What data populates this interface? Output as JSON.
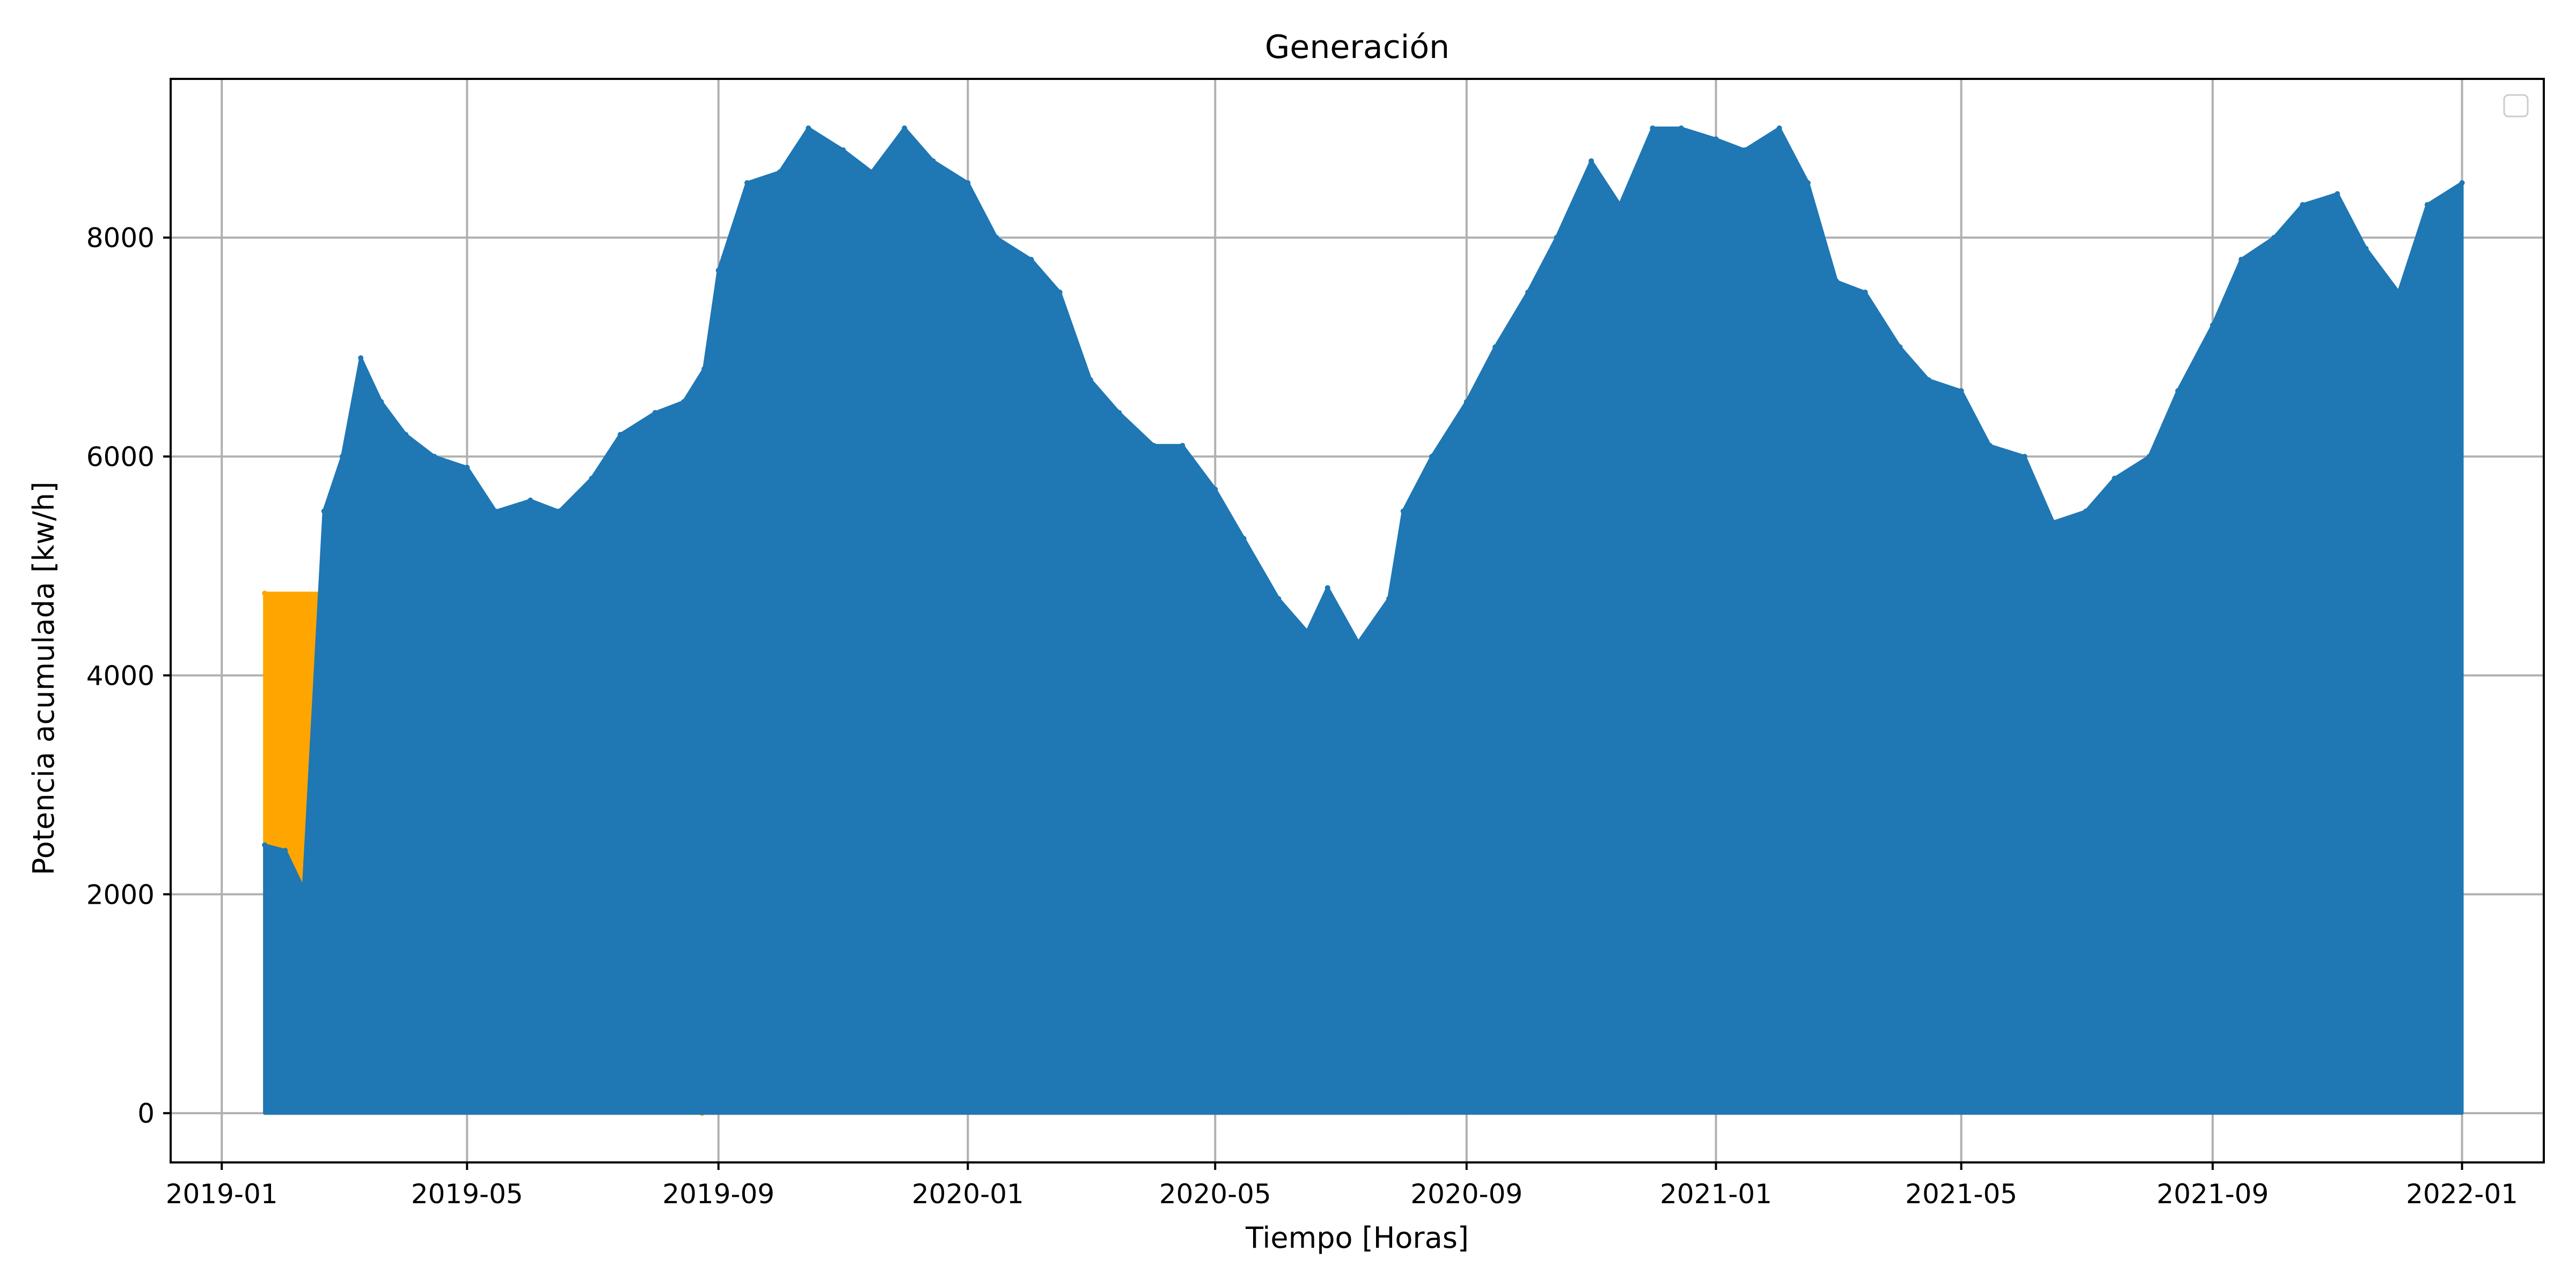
{
  "chart_data": {
    "type": "area",
    "title": "Generación",
    "xlabel": "Tiempo [Horas]",
    "ylabel": "Potencia acumulada [kw/h]",
    "x_ticks": [
      "2019-01",
      "2019-05",
      "2019-09",
      "2020-01",
      "2020-05",
      "2020-09",
      "2021-01",
      "2021-05",
      "2021-09",
      "2022-01"
    ],
    "y_ticks": [
      0,
      2000,
      4000,
      6000,
      8000
    ],
    "xlim": [
      "2018-12-07",
      "2022-02-10"
    ],
    "ylim": [
      -450,
      9450
    ],
    "grid": true,
    "legend": {
      "placement": "top-right",
      "entries": []
    },
    "series": [
      {
        "color": "#ffa500",
        "x": [
          "2019-01-22",
          "2019-02-22",
          "2019-03-10",
          "2019-05-01",
          "2019-05-15",
          "2019-06-10",
          "2019-07-01",
          "2019-08-01",
          "2019-08-20",
          "2019-08-24",
          "2020-06-05",
          "2020-07-10",
          "2020-08-01"
        ],
        "values": [
          4750,
          4750,
          4700,
          4350,
          4500,
          3600,
          4000,
          4550,
          3600,
          0,
          3700,
          4300,
          3550
        ]
      },
      {
        "color": "#1f77b4",
        "x": [
          "2019-01-22",
          "2019-02-01",
          "2019-02-10",
          "2019-02-20",
          "2019-03-01",
          "2019-03-10",
          "2019-03-20",
          "2019-04-01",
          "2019-04-15",
          "2019-05-01",
          "2019-05-15",
          "2019-06-01",
          "2019-06-15",
          "2019-07-01",
          "2019-07-15",
          "2019-08-01",
          "2019-08-15",
          "2019-08-25",
          "2019-09-01",
          "2019-09-15",
          "2019-10-01",
          "2019-10-15",
          "2019-11-01",
          "2019-11-15",
          "2019-12-01",
          "2019-12-15",
          "2020-01-01",
          "2020-01-15",
          "2020-02-01",
          "2020-02-15",
          "2020-03-01",
          "2020-03-15",
          "2020-04-01",
          "2020-04-15",
          "2020-05-01",
          "2020-05-15",
          "2020-06-01",
          "2020-06-15",
          "2020-06-25",
          "2020-07-10",
          "2020-07-25",
          "2020-08-01",
          "2020-08-15",
          "2020-09-01",
          "2020-09-15",
          "2020-10-01",
          "2020-10-15",
          "2020-11-01",
          "2020-11-15",
          "2020-12-01",
          "2020-12-15",
          "2021-01-01",
          "2021-01-15",
          "2021-02-01",
          "2021-02-15",
          "2021-03-01",
          "2021-03-15",
          "2021-04-01",
          "2021-04-15",
          "2021-05-01",
          "2021-05-15",
          "2021-06-01",
          "2021-06-15",
          "2021-07-01",
          "2021-07-15",
          "2021-08-01",
          "2021-08-15",
          "2021-09-01",
          "2021-09-15",
          "2021-10-01",
          "2021-10-15",
          "2021-11-01",
          "2021-11-15",
          "2021-12-01",
          "2021-12-15",
          "2022-01-01"
        ],
        "values": [
          2450,
          2400,
          2050,
          5500,
          6000,
          6900,
          6500,
          6200,
          6000,
          5900,
          5500,
          5600,
          5500,
          5800,
          6200,
          6400,
          6500,
          6800,
          7700,
          8500,
          8600,
          9000,
          8800,
          8600,
          9000,
          8700,
          8500,
          8000,
          7800,
          7500,
          6700,
          6400,
          6100,
          6100,
          5700,
          5250,
          4700,
          4400,
          4800,
          4300,
          4700,
          5500,
          6000,
          6500,
          7000,
          7500,
          8000,
          8700,
          8300,
          9000,
          9000,
          8900,
          8800,
          9000,
          8500,
          7600,
          7500,
          7000,
          6700,
          6600,
          6100,
          6000,
          5400,
          5500,
          5800,
          6000,
          6600,
          7200,
          7800,
          8000,
          8300,
          8400,
          7900,
          7500,
          8300,
          8500
        ]
      }
    ]
  }
}
